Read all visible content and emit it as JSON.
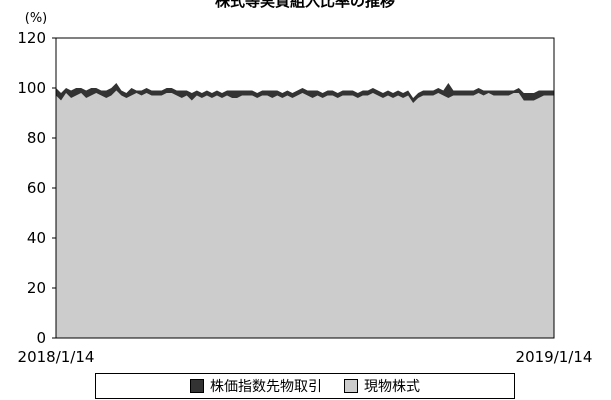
{
  "chart_data": {
    "type": "area",
    "title": "株式等実質組入比率の推移",
    "ylabel": "(%)",
    "xlabel": "",
    "ylim": [
      0,
      120
    ],
    "yticks": [
      0,
      20,
      40,
      60,
      80,
      100,
      120
    ],
    "x_start_label": "2018/1/14",
    "x_end_label": "2019/1/14",
    "grid": false,
    "legend_position": "bottom",
    "stacked": true,
    "series": [
      {
        "name": "現物株式",
        "color": "#cccccc",
        "values": [
          97,
          95,
          98,
          96,
          97,
          98,
          96,
          97,
          98,
          97,
          96,
          97,
          99,
          97,
          96,
          97,
          98,
          97,
          98,
          97,
          97,
          97,
          98,
          98,
          97,
          96,
          97,
          95,
          97,
          96,
          97,
          96,
          97,
          96,
          97,
          96,
          96,
          97,
          97,
          97,
          96,
          97,
          97,
          96,
          97,
          96,
          97,
          96,
          97,
          98,
          97,
          96,
          97,
          96,
          97,
          97,
          96,
          97,
          97,
          97,
          96,
          97,
          97,
          98,
          97,
          96,
          97,
          96,
          97,
          96,
          97,
          94,
          96,
          97,
          97,
          97,
          98,
          97,
          96,
          97,
          97,
          97,
          97,
          97,
          98,
          97,
          98,
          97,
          97,
          97,
          97,
          98,
          98,
          95,
          95,
          95,
          96,
          97,
          97,
          97
        ]
      },
      {
        "name": "株価指数先物取引",
        "color": "#333333",
        "values": [
          3,
          3,
          2,
          3,
          3,
          2,
          3,
          3,
          2,
          2,
          3,
          3,
          3,
          2,
          2,
          3,
          1,
          2,
          2,
          2,
          2,
          2,
          2,
          2,
          2,
          3,
          2,
          3,
          2,
          2,
          2,
          2,
          2,
          2,
          2,
          3,
          3,
          2,
          2,
          2,
          2,
          2,
          2,
          3,
          2,
          2,
          2,
          2,
          2,
          2,
          2,
          3,
          2,
          2,
          2,
          2,
          2,
          2,
          2,
          2,
          2,
          2,
          2,
          2,
          2,
          2,
          2,
          2,
          2,
          2,
          2,
          2,
          2,
          2,
          2,
          2,
          2,
          2,
          6,
          2,
          2,
          2,
          2,
          2,
          2,
          2,
          1,
          2,
          2,
          2,
          2,
          1,
          2,
          3,
          3,
          3,
          3,
          2,
          2,
          2
        ]
      }
    ]
  }
}
